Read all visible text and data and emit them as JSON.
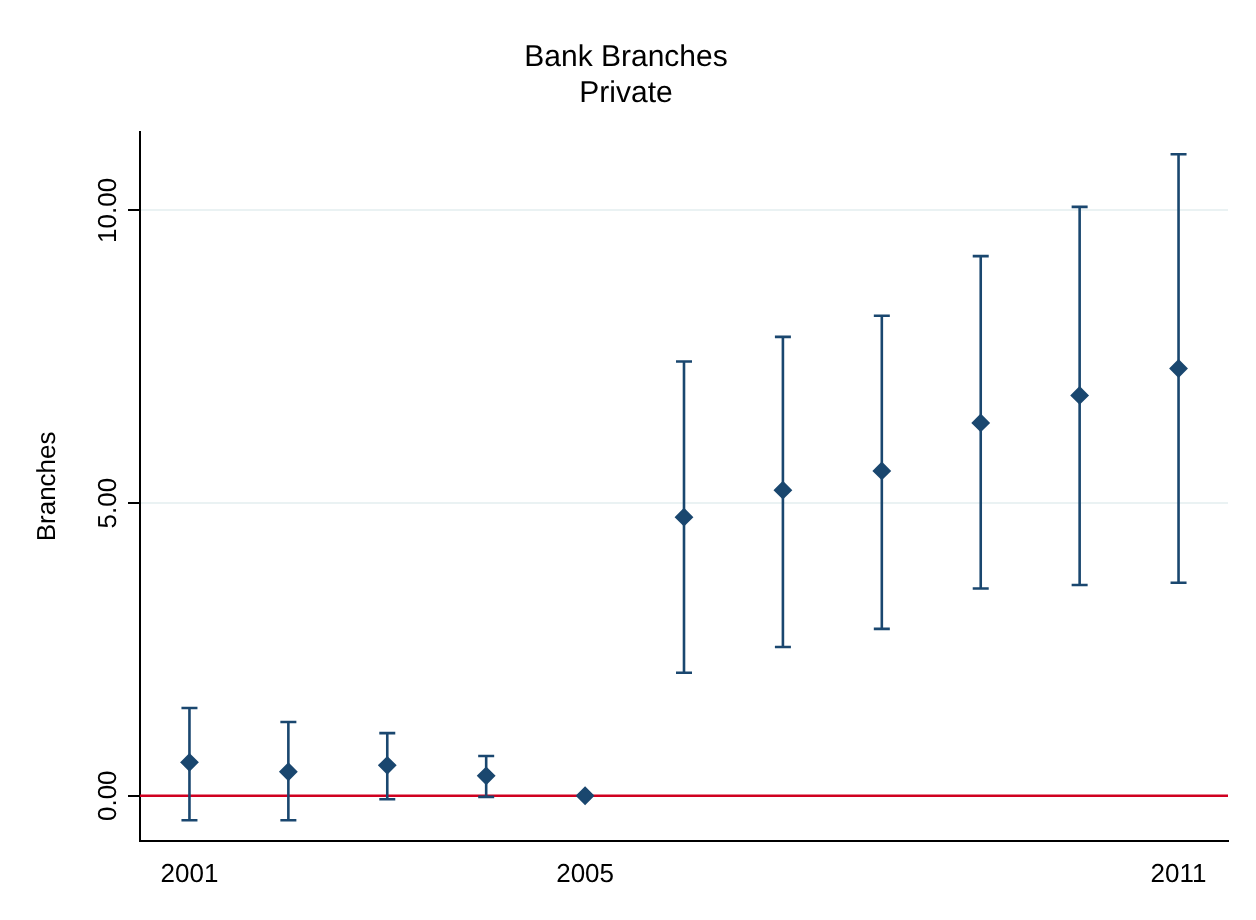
{
  "chart_data": {
    "type": "scatter",
    "title": "Bank Branches",
    "subtitle": "Private",
    "ylabel": "Branches",
    "x": [
      2001,
      2002,
      2003,
      2004,
      2005,
      2006,
      2007,
      2008,
      2009,
      2010,
      2011
    ],
    "series": [
      {
        "color": "#1a476f",
        "values": [
          0.57,
          0.41,
          0.52,
          0.34,
          0,
          4.76,
          5.22,
          5.55,
          6.37,
          6.84,
          7.3
        ],
        "errors": [
          [
            -0.42,
            1.5
          ],
          [
            -0.42,
            1.26
          ],
          [
            -0.06,
            1.07
          ],
          [
            -0.02,
            0.68
          ],
          null,
          [
            2.1,
            7.42
          ],
          [
            2.54,
            7.84
          ],
          [
            2.85,
            8.2
          ],
          [
            3.54,
            9.22
          ],
          [
            3.6,
            10.06
          ],
          [
            3.64,
            10.96
          ]
        ]
      }
    ],
    "xlim": [
      2000.5,
      2011.5
    ],
    "xticks": [
      2001,
      2005,
      2011
    ],
    "ylim": [
      -0.77,
      11.34
    ],
    "yticks": [
      {
        "value": 0,
        "label": "0.00"
      },
      {
        "value": 5,
        "label": "5.00"
      },
      {
        "value": 10,
        "label": "10.00"
      }
    ],
    "ref_lines": [
      {
        "axis": "y",
        "value": 0,
        "color": "#d00020"
      }
    ],
    "grid": "y",
    "marker": "diamond",
    "legend": false
  }
}
